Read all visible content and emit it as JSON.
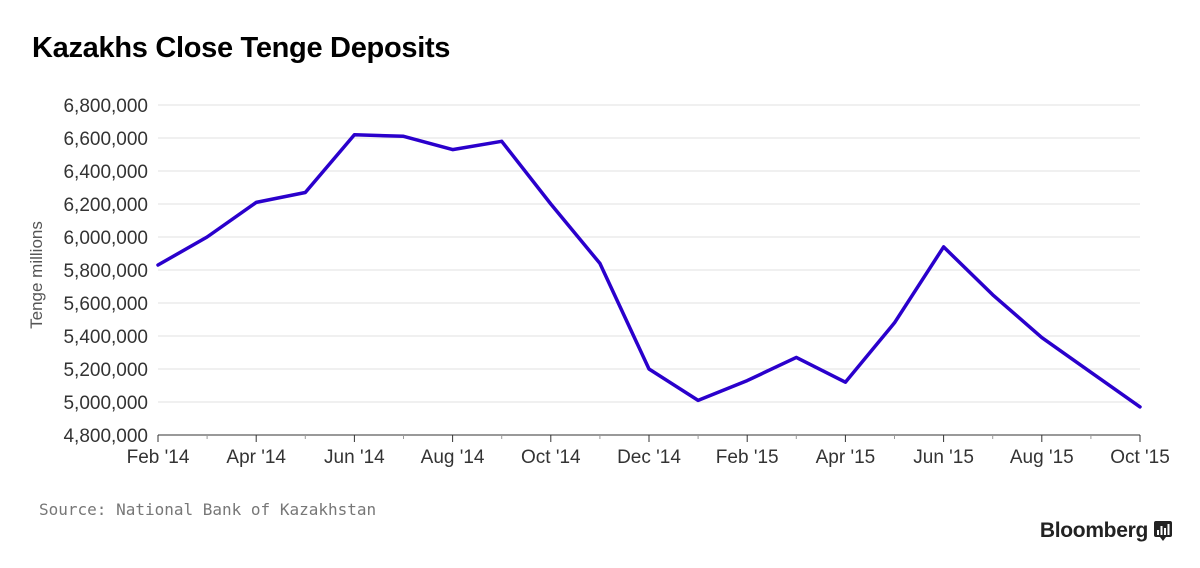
{
  "title": "Kazakhs Close Tenge Deposits",
  "source": "Source: National Bank of Kazakhstan",
  "brand": "Bloomberg",
  "chart_data": {
    "type": "line",
    "title": "Kazakhs Close Tenge Deposits",
    "ylabel": "Tenge millions",
    "xlabel": "",
    "ylim": [
      4800000,
      6800000
    ],
    "yticks": [
      4800000,
      5000000,
      5200000,
      5400000,
      5600000,
      5800000,
      6000000,
      6200000,
      6400000,
      6600000,
      6800000
    ],
    "ytick_labels": [
      "4,800,000",
      "5,000,000",
      "5,200,000",
      "5,400,000",
      "5,600,000",
      "5,800,000",
      "6,000,000",
      "6,200,000",
      "6,400,000",
      "6,600,000",
      "6,800,000"
    ],
    "xtick_labels": [
      "Feb '14",
      "Apr '14",
      "Jun '14",
      "Aug '14",
      "Oct '14",
      "Dec '14",
      "Feb '15",
      "Apr '15",
      "Jun '15",
      "Aug '15",
      "Oct '15"
    ],
    "grid": true,
    "line_color": "#2a00cc",
    "series": [
      {
        "x": [
          "Feb '14",
          "Mar '14",
          "Apr '14",
          "May '14",
          "Jun '14",
          "Jul '14",
          "Aug '14",
          "Sep '14",
          "Oct '14",
          "Nov '14",
          "Dec '14",
          "Jan '15",
          "Feb '15",
          "Mar '15",
          "Apr '15",
          "May '15",
          "Jun '15",
          "Jul '15",
          "Aug '15",
          "Sep '15",
          "Oct '15"
        ],
        "values": [
          5830000,
          6000000,
          6210000,
          6270000,
          6620000,
          6610000,
          6530000,
          6580000,
          6200000,
          5840000,
          5200000,
          5010000,
          5130000,
          5270000,
          5120000,
          5480000,
          5940000,
          5650000,
          5390000,
          5180000,
          4970000
        ]
      }
    ]
  }
}
